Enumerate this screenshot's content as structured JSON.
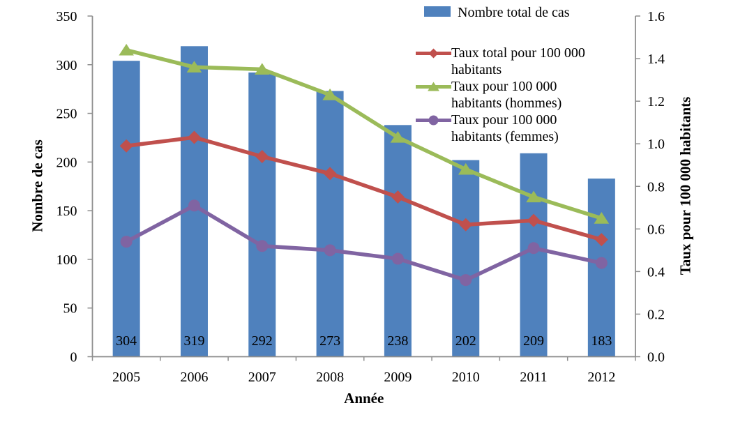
{
  "chart": {
    "background": "#FFFFFF",
    "axis_color": "#8E8E8E",
    "text_color": "#000000"
  },
  "chart_data": {
    "type": "combo-bar-line",
    "categories": [
      "2005",
      "2006",
      "2007",
      "2008",
      "2009",
      "2010",
      "2011",
      "2012"
    ],
    "bar_series": {
      "name": "Nombre total de cas",
      "values": [
        304,
        319,
        292,
        273,
        238,
        202,
        209,
        183
      ],
      "color": "#4F81BD",
      "axis": "left"
    },
    "line_series": [
      {
        "name": "Taux total pour 100 000 habitants",
        "values": [
          0.99,
          1.03,
          0.94,
          0.86,
          0.75,
          0.62,
          0.64,
          0.55
        ],
        "color": "#C0504D",
        "marker": "diamond",
        "axis": "right"
      },
      {
        "name": "Taux pour 100 000 habitants (hommes)",
        "values": [
          1.44,
          1.36,
          1.35,
          1.23,
          1.03,
          0.88,
          0.75,
          0.65
        ],
        "color": "#9BBB59",
        "marker": "triangle",
        "axis": "right"
      },
      {
        "name": "Taux pour 100 000 habitants (femmes)",
        "values": [
          0.54,
          0.71,
          0.52,
          0.5,
          0.46,
          0.36,
          0.51,
          0.44
        ],
        "color": "#8064A2",
        "marker": "circle",
        "axis": "right"
      }
    ],
    "bar_value_labels": [
      "304",
      "319",
      "292",
      "273",
      "238",
      "202",
      "209",
      "183"
    ],
    "xlabel": "Année",
    "ylabel_left": "Nombre de cas",
    "ylabel_right": "Taux pour 100 000 habitants",
    "left_axis": {
      "min": 0,
      "max": 350,
      "step": 50,
      "tick_labels": [
        "0",
        "50",
        "100",
        "150",
        "200",
        "250",
        "300",
        "350"
      ]
    },
    "right_axis": {
      "min": 0,
      "max": 1.6,
      "step": 0.2,
      "tick_labels": [
        "0.0",
        "0.2",
        "0.4",
        "0.6",
        "0.8",
        "1.0",
        "1.2",
        "1.4",
        "1.6"
      ]
    },
    "grid": false,
    "legend_position": "top-right"
  }
}
